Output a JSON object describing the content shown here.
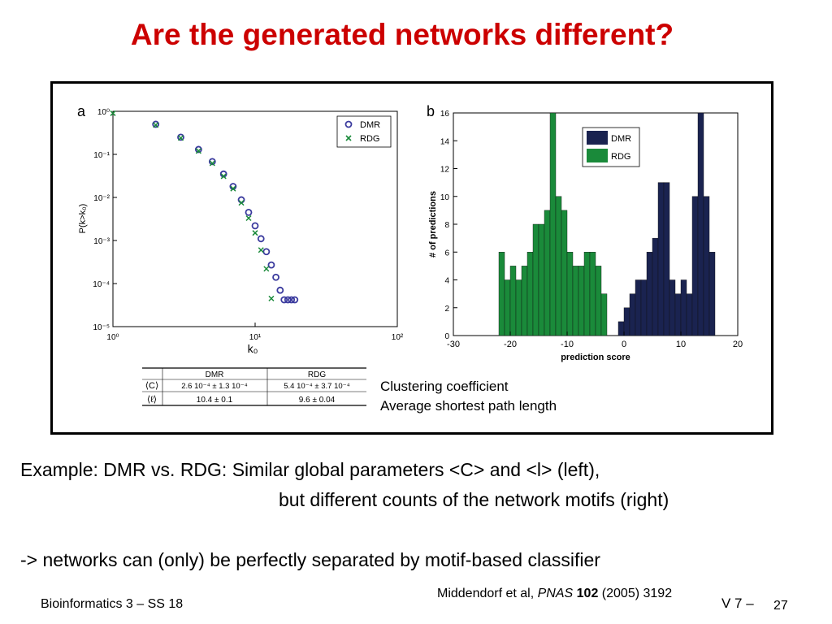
{
  "slide": {
    "title": "Are the generated networks different?",
    "figure_captions": [
      "Clustering coefficient",
      "Average shortest path length"
    ],
    "body_line1": "Example: DMR vs. RDG:  Similar global parameters <C> and <l> (left),",
    "body_line2": "but different counts of the network motifs (right)",
    "body_line3": "-> networks can (only) be perfectly separated by motif-based classifier",
    "footer_left": "Bioinformatics 3 – SS 18",
    "citation": {
      "authors": "Middendorf et al, ",
      "journal": "PNAS",
      "volume": "102",
      "rest": " (2005) 3192"
    },
    "page_label": "V 7 –",
    "page_number": "27"
  },
  "table": {
    "headers": [
      "",
      "DMR",
      "RDG"
    ],
    "rows": [
      [
        "⟨C⟩",
        "2.6  10⁻⁴ ± 1.3  10⁻⁴",
        "5.4  10⁻⁴ ± 3.7  10⁻⁴"
      ],
      [
        "⟨ℓ⟩",
        "10.4 ± 0.1",
        "9.6 ± 0.04"
      ]
    ]
  },
  "chart_data": [
    {
      "type": "scatter",
      "panel_label": "a",
      "xlabel": "k₀",
      "ylabel": "P(k>k₀)",
      "log_x": true,
      "log_y": true,
      "xlim": [
        1,
        100
      ],
      "ylim": [
        1e-05,
        1
      ],
      "x_tick_labels": [
        "10⁰",
        "10¹",
        "10²"
      ],
      "y_tick_labels": [
        "10⁰",
        "10⁻¹",
        "10⁻²",
        "10⁻³",
        "10⁻⁴",
        "10⁻⁵"
      ],
      "legend_position": "top-right",
      "series": [
        {
          "name": "DMR",
          "marker": "circle",
          "color": "#3b3b9e",
          "points": [
            [
              2,
              0.5
            ],
            [
              3,
              0.25
            ],
            [
              4,
              0.13
            ],
            [
              5,
              0.068
            ],
            [
              6,
              0.035
            ],
            [
              7,
              0.018
            ],
            [
              8,
              0.0088
            ],
            [
              9,
              0.0045
            ],
            [
              10,
              0.0022
            ],
            [
              11,
              0.0011
            ],
            [
              12,
              0.00055
            ],
            [
              13,
              0.00027
            ],
            [
              14,
              0.00014
            ],
            [
              15,
              7e-05
            ],
            [
              16,
              4.2e-05
            ],
            [
              17,
              4.2e-05
            ],
            [
              18,
              4.2e-05
            ],
            [
              19,
              4.2e-05
            ]
          ]
        },
        {
          "name": "RDG",
          "marker": "x",
          "color": "#1a8a3a",
          "points": [
            [
              1,
              0.9
            ],
            [
              2,
              0.48
            ],
            [
              3,
              0.24
            ],
            [
              4,
              0.12
            ],
            [
              5,
              0.062
            ],
            [
              6,
              0.031
            ],
            [
              7,
              0.016
            ],
            [
              8,
              0.0075
            ],
            [
              9,
              0.0033
            ],
            [
              10,
              0.0015
            ],
            [
              11,
              0.0006
            ],
            [
              12,
              0.00022
            ],
            [
              13,
              4.5e-05
            ]
          ]
        }
      ]
    },
    {
      "type": "bar",
      "panel_label": "b",
      "xlabel": "prediction score",
      "ylabel": "# of predictions",
      "xlim": [
        -30,
        20
      ],
      "ylim": [
        0,
        16
      ],
      "x_ticks": [
        -30,
        -20,
        -10,
        0,
        10,
        20
      ],
      "y_ticks": [
        0,
        2,
        4,
        6,
        8,
        10,
        12,
        14,
        16
      ],
      "bin_width": 1,
      "legend_position": "top-right",
      "series": [
        {
          "name": "DMR",
          "color": "#1a2350",
          "bin_start": -1,
          "values": [
            1,
            2,
            3,
            4,
            4,
            6,
            7,
            11,
            11,
            4,
            3,
            4,
            3,
            10,
            16,
            10,
            6
          ]
        },
        {
          "name": "RDG",
          "color": "#1a8a3a",
          "bin_start": -22,
          "values": [
            6,
            4,
            5,
            4,
            5,
            6,
            8,
            8,
            9,
            16,
            10,
            9,
            6,
            5,
            5,
            6,
            6,
            5,
            3
          ]
        }
      ]
    }
  ]
}
